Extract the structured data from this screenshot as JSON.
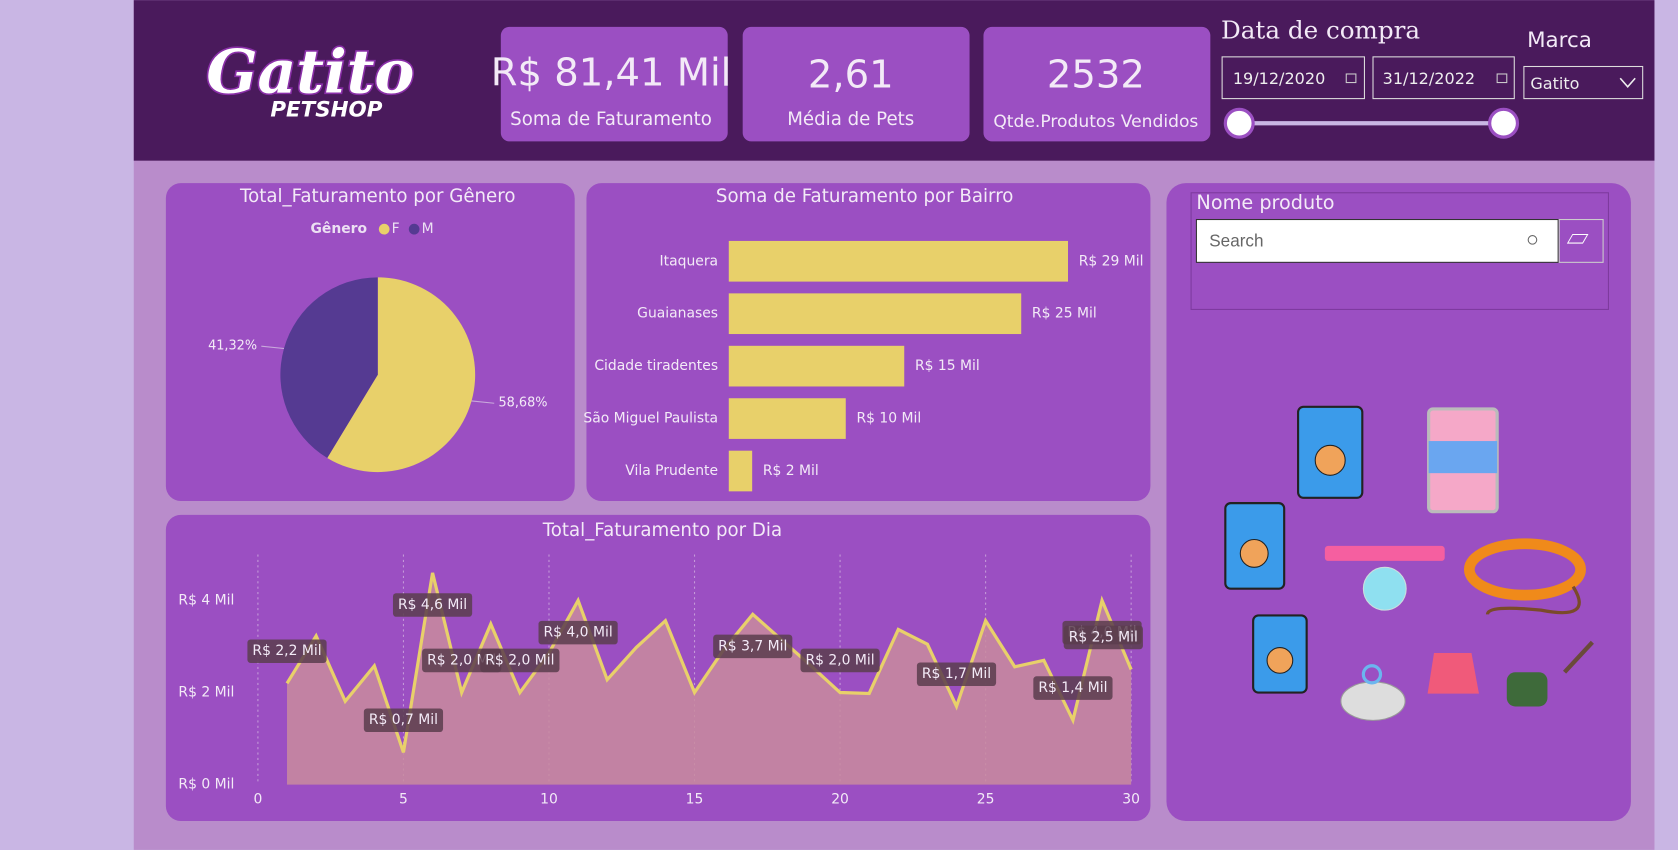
{
  "header": {
    "logo": {
      "title": "Gatito",
      "subtitle": "PETSHOP"
    },
    "cards": [
      {
        "value": "R$ 81,41 Mil",
        "label": "Soma de Faturamento"
      },
      {
        "value": "2,61",
        "label": "Média de Pets"
      },
      {
        "value": "2532",
        "label": "Qtde.Produtos Vendidos"
      }
    ]
  },
  "filters": {
    "date": {
      "title": "Data de compra",
      "start": "19/12/2020",
      "end": "31/12/2022"
    },
    "brand": {
      "title": "Marca",
      "selected": "Gatito"
    },
    "product": {
      "title": "Nome produto",
      "placeholder": "Search"
    }
  },
  "chart_data": [
    {
      "type": "pie",
      "title": "Total_Faturamento por Gênero",
      "legend_title": "Gênero",
      "categories": [
        "F",
        "M"
      ],
      "values": [
        58.68,
        41.32
      ],
      "value_labels": [
        "58,68%",
        "41,32%"
      ],
      "colors": [
        "#e8d06a",
        "#553a92"
      ],
      "legend": "top"
    },
    {
      "type": "bar",
      "title": "Soma de Faturamento por Bairro",
      "orientation": "horizontal",
      "categories": [
        "Itaquera",
        "Guaianases",
        "Cidade tiradentes",
        "São Miguel Paulista",
        "Vila Prudente"
      ],
      "values": [
        29,
        25,
        15,
        10,
        2
      ],
      "value_labels": [
        "R$ 29 Mil",
        "R$ 25 Mil",
        "R$ 15 Mil",
        "R$ 10 Mil",
        "R$ 2 Mil"
      ],
      "color": "#e8d06a"
    },
    {
      "type": "area",
      "title": "Total_Faturamento por Dia",
      "x": [
        1,
        2,
        3,
        4,
        5,
        6,
        7,
        8,
        9,
        10,
        11,
        12,
        13,
        14,
        15,
        16,
        17,
        18,
        19,
        20,
        21,
        22,
        23,
        24,
        25,
        26,
        27,
        28,
        29,
        30
      ],
      "values": [
        2200,
        3230,
        1810,
        2580,
        700,
        4600,
        2000,
        3490,
        2000,
        2860,
        4000,
        2280,
        2980,
        3560,
        2000,
        2930,
        3700,
        3140,
        2580,
        2000,
        1980,
        3370,
        3050,
        1700,
        3560,
        2560,
        2700,
        1400,
        4000,
        2500
      ],
      "value_labels": [
        "R$ 2,2 Mil",
        null,
        null,
        null,
        "R$ 0,7 Mil",
        "R$ 4,6 Mil",
        "R$ 2,0 Mil",
        null,
        "R$ 2,0 Mil",
        null,
        "R$ 4,0 Mil",
        null,
        null,
        null,
        null,
        null,
        "R$ 3,7 Mil",
        null,
        null,
        "R$ 2,0 Mil",
        null,
        null,
        null,
        "R$ 1,7 Mil",
        null,
        null,
        null,
        "R$ 1,4 Mil",
        "R$ 4,0 Mil",
        "R$ 2,5 Mil"
      ],
      "color": "#e8d06a",
      "fill": "#c98b9e",
      "xlim": [
        0,
        30
      ],
      "xticks": [
        0,
        5,
        10,
        15,
        20,
        25,
        30
      ],
      "ylim": [
        0,
        5000
      ],
      "yticks": [
        {
          "value": 0,
          "label": "R$ 0 Mil"
        },
        {
          "value": 2000,
          "label": "R$ 2 Mil"
        },
        {
          "value": 4000,
          "label": "R$ 4 Mil"
        }
      ],
      "grid": true
    }
  ]
}
